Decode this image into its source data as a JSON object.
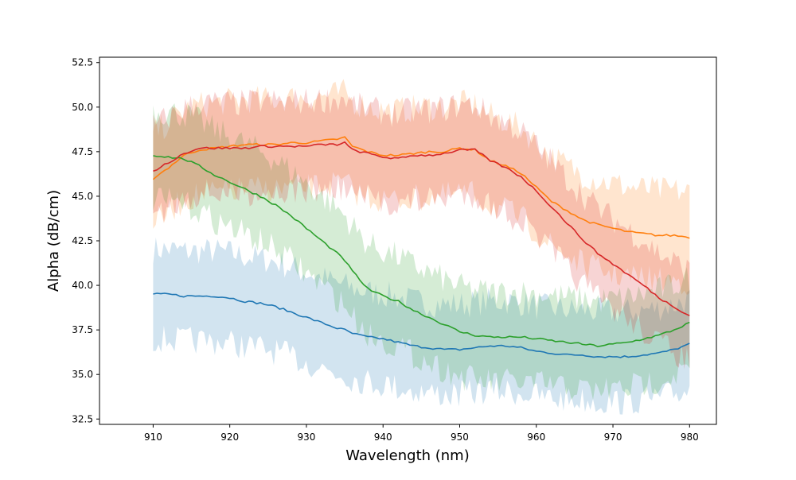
{
  "chart_data": {
    "type": "line",
    "title": "",
    "xlabel": "Wavelength (nm)",
    "ylabel": "Alpha (dB/cm)",
    "xlim": [
      903,
      983.5
    ],
    "ylim": [
      32.2,
      52.8
    ],
    "xticks": [
      910,
      920,
      930,
      940,
      950,
      960,
      970,
      980
    ],
    "yticks": [
      32.5,
      35.0,
      37.5,
      40.0,
      42.5,
      45.0,
      47.5,
      50.0,
      52.5
    ],
    "xtick_labels": [
      "910",
      "920",
      "930",
      "940",
      "950",
      "960",
      "970",
      "980"
    ],
    "ytick_labels": [
      "32.5",
      "35.0",
      "37.5",
      "40.0",
      "42.5",
      "45.0",
      "47.5",
      "50.0",
      "52.5"
    ],
    "grid": false,
    "legend": "none",
    "band": "shaded region around each line, approx. ±2.2 dB/cm",
    "x": [
      910,
      912,
      914,
      916,
      918,
      920,
      922,
      924,
      926,
      928,
      930,
      932,
      934,
      935,
      936,
      938,
      940,
      942,
      944,
      946,
      948,
      950,
      952,
      954,
      956,
      958,
      960,
      962,
      964,
      966,
      968,
      970,
      972,
      974,
      976,
      978,
      980
    ],
    "series": [
      {
        "color": "#1f77b4",
        "values": [
          39.5,
          39.5,
          39.4,
          39.4,
          39.4,
          39.3,
          39.1,
          39.0,
          38.8,
          38.5,
          38.2,
          37.9,
          37.6,
          37.5,
          37.3,
          37.1,
          37.0,
          36.8,
          36.6,
          36.5,
          36.4,
          36.4,
          36.5,
          36.6,
          36.6,
          36.5,
          36.3,
          36.2,
          36.1,
          36.1,
          36.0,
          36.0,
          36.0,
          36.1,
          36.2,
          36.4,
          36.7
        ]
      },
      {
        "color": "#ff7f0e",
        "values": [
          46.0,
          46.6,
          47.3,
          47.6,
          47.7,
          47.8,
          47.9,
          47.9,
          47.9,
          48.0,
          48.0,
          48.1,
          48.2,
          48.3,
          47.8,
          47.5,
          47.3,
          47.3,
          47.4,
          47.5,
          47.5,
          47.7,
          47.6,
          47.0,
          46.7,
          46.3,
          45.5,
          44.7,
          44.2,
          43.7,
          43.4,
          43.2,
          43.0,
          42.9,
          42.8,
          42.8,
          42.7
        ]
      },
      {
        "color": "#2ca02c",
        "values": [
          47.3,
          47.2,
          47.1,
          46.7,
          46.2,
          45.8,
          45.4,
          45.0,
          44.5,
          43.9,
          43.2,
          42.5,
          41.8,
          41.4,
          40.8,
          39.8,
          39.4,
          39.1,
          38.6,
          38.2,
          37.8,
          37.4,
          37.2,
          37.1,
          37.1,
          37.1,
          37.0,
          36.9,
          36.8,
          36.7,
          36.6,
          36.7,
          36.8,
          37.0,
          37.2,
          37.5,
          37.9
        ]
      },
      {
        "color": "#d62728",
        "values": [
          46.4,
          46.9,
          47.4,
          47.7,
          47.7,
          47.7,
          47.7,
          47.8,
          47.8,
          47.8,
          47.8,
          47.9,
          47.9,
          48.0,
          47.6,
          47.4,
          47.2,
          47.1,
          47.3,
          47.3,
          47.4,
          47.6,
          47.6,
          47.0,
          46.6,
          46.1,
          45.3,
          44.4,
          43.5,
          42.6,
          41.8,
          41.2,
          40.6,
          40.0,
          39.3,
          38.8,
          38.3
        ]
      }
    ]
  }
}
